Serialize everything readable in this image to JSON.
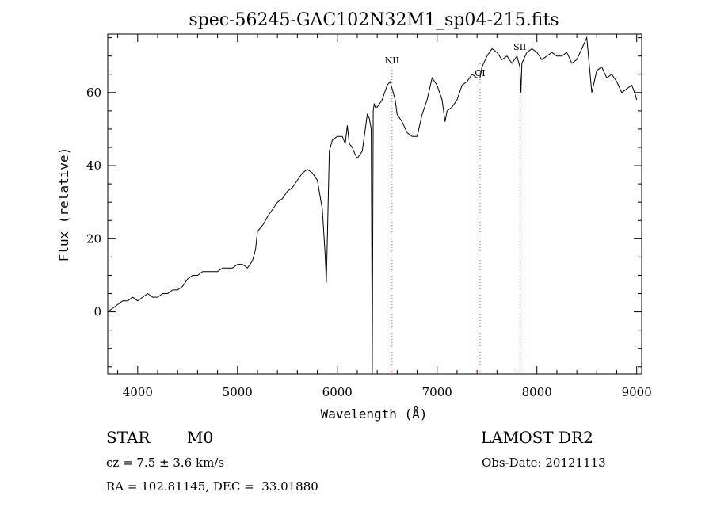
{
  "chart_data": {
    "type": "line",
    "title": "spec-56245-GAC102N32M1_sp04-215.fits",
    "xlabel": "Wavelength (Å)",
    "ylabel": "Flux (relative)",
    "xlim": [
      3700,
      9050
    ],
    "ylim": [
      -17,
      76
    ],
    "xticks": [
      4000,
      5000,
      6000,
      7000,
      8000,
      9000
    ],
    "yticks": [
      0,
      20,
      40,
      60
    ],
    "grid": false,
    "series": [
      {
        "line_color": "#000000",
        "x": [
          3700,
          3750,
          3800,
          3850,
          3900,
          3950,
          4000,
          4050,
          4100,
          4150,
          4200,
          4250,
          4300,
          4350,
          4400,
          4450,
          4500,
          4550,
          4600,
          4650,
          4700,
          4750,
          4800,
          4850,
          4900,
          4950,
          5000,
          5050,
          5100,
          5150,
          5180,
          5200,
          5230,
          5260,
          5300,
          5350,
          5400,
          5450,
          5500,
          5550,
          5600,
          5650,
          5700,
          5750,
          5800,
          5850,
          5880,
          5890,
          5900,
          5920,
          5950,
          6000,
          6050,
          6080,
          6100,
          6120,
          6150,
          6180,
          6200,
          6250,
          6300,
          6320,
          6340,
          6350,
          6360,
          6365,
          6370,
          6380,
          6400,
          6450,
          6500,
          6530,
          6560,
          6580,
          6600,
          6650,
          6700,
          6750,
          6800,
          6850,
          6900,
          6950,
          7000,
          7050,
          7080,
          7100,
          7150,
          7200,
          7250,
          7300,
          7350,
          7400,
          7430,
          7450,
          7500,
          7550,
          7600,
          7650,
          7700,
          7750,
          7800,
          7830,
          7840,
          7850,
          7900,
          7950,
          8000,
          8050,
          8100,
          8150,
          8200,
          8250,
          8300,
          8350,
          8400,
          8450,
          8500,
          8550,
          8600,
          8650,
          8700,
          8750,
          8800,
          8850,
          8900,
          8950,
          8980,
          9000
        ],
        "y": [
          0,
          1,
          2,
          3,
          3,
          4,
          3,
          4,
          5,
          4,
          4,
          5,
          5,
          6,
          6,
          7,
          9,
          10,
          10,
          11,
          11,
          11,
          11,
          12,
          12,
          12,
          13,
          13,
          12,
          14,
          17,
          22,
          23,
          24,
          26,
          28,
          30,
          31,
          33,
          34,
          36,
          38,
          39,
          38,
          36,
          28,
          15,
          8,
          20,
          44,
          47,
          48,
          48,
          46,
          51,
          46,
          45,
          43,
          42,
          44,
          54,
          53,
          50,
          -17,
          55,
          56,
          57,
          56,
          56,
          58,
          62,
          63,
          60,
          58,
          54,
          52,
          49,
          48,
          48,
          54,
          58,
          64,
          62,
          58,
          52,
          55,
          56,
          58,
          62,
          63,
          65,
          64,
          64,
          67,
          70,
          72,
          71,
          69,
          70,
          68,
          70,
          67,
          60,
          68,
          71,
          72,
          71,
          69,
          70,
          71,
          70,
          70,
          71,
          68,
          69,
          72,
          75,
          60,
          66,
          67,
          64,
          65,
          63,
          60,
          61,
          62,
          60,
          58
        ]
      }
    ],
    "annotations": [
      {
        "label": "NII",
        "x": 6548
      },
      {
        "label": "OI",
        "x": 7430
      },
      {
        "label": "SII",
        "x": 7830
      }
    ],
    "vline_color": "#e04040"
  },
  "footer": {
    "object_class": "STAR",
    "subclass": "M0",
    "cz": "cz = 7.5 ± 3.6 km/s",
    "coords": "RA = 102.81145, DEC =  33.01880",
    "survey": "LAMOST DR2",
    "obs_date": "Obs-Date: 20121113"
  }
}
